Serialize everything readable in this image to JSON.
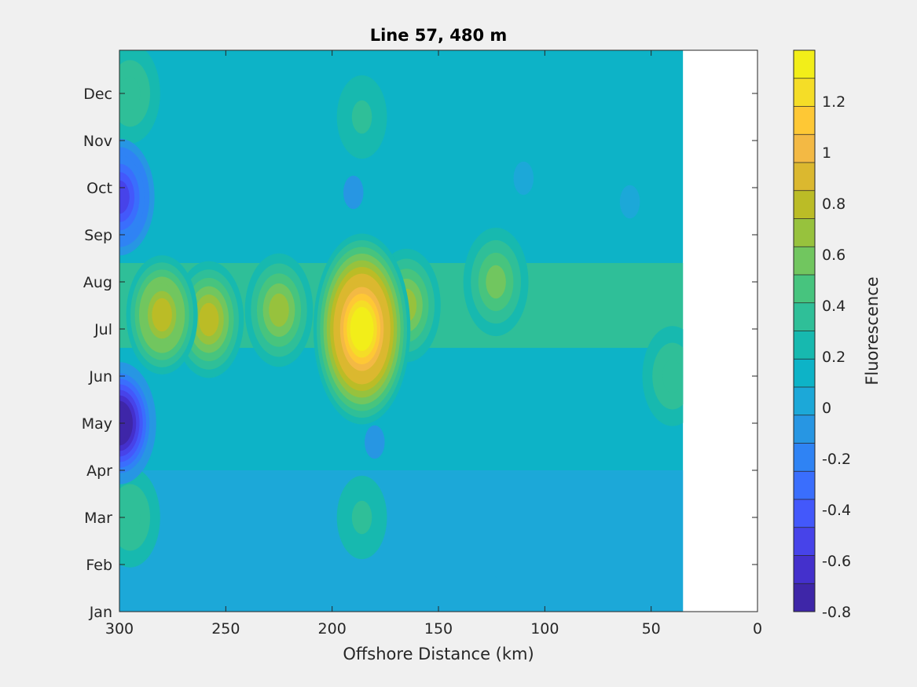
{
  "chart_data": {
    "type": "heatmap",
    "title": "Line 57, 480 m",
    "xlabel": "Offshore Distance (km)",
    "ylabel": "",
    "x_reversed": true,
    "xlim": [
      0,
      300
    ],
    "x_ticks": [
      300,
      250,
      200,
      150,
      100,
      50,
      0
    ],
    "y_ticks": [
      "Jan",
      "Feb",
      "Mar",
      "Apr",
      "May",
      "Jun",
      "Jul",
      "Aug",
      "Sep",
      "Oct",
      "Nov",
      "Dec"
    ],
    "data_extent_km": [
      35,
      300
    ],
    "colorbar": {
      "label": "Fluorescence",
      "range": [
        -0.8,
        1.4
      ],
      "ticks": [
        1.2,
        1,
        0.8,
        0.6,
        0.4,
        0.2,
        0,
        -0.2,
        -0.4,
        -0.6,
        -0.8
      ],
      "levels": [
        "#3e26a8",
        "#4430cc",
        "#4743e9",
        "#4358fb",
        "#3a6efd",
        "#2f83f4",
        "#2796e3",
        "#1ca8d8",
        "#0db3c7",
        "#17b9af",
        "#2fbf98",
        "#47c47e",
        "#71c65f",
        "#97c23d",
        "#bbbc26",
        "#dbb82f",
        "#f3b944",
        "#fec835",
        "#f5dd27",
        "#f2ee19"
      ],
      "grid": false
    },
    "features": [
      {
        "km": 186,
        "month": 6.0,
        "value": 1.35
      },
      {
        "km": 280,
        "month": 6.3,
        "value": 0.8
      },
      {
        "km": 258,
        "month": 6.2,
        "value": 0.75
      },
      {
        "km": 225,
        "month": 6.4,
        "value": 0.7
      },
      {
        "km": 165,
        "month": 6.5,
        "value": 0.65
      },
      {
        "km": 123,
        "month": 7.0,
        "value": 0.6
      },
      {
        "km": 300,
        "month": 4.0,
        "value": -0.8
      },
      {
        "km": 300,
        "month": 8.8,
        "value": -0.55
      },
      {
        "km": 295,
        "month": 2.0,
        "value": 0.4
      },
      {
        "km": 295,
        "month": 11.0,
        "value": 0.4
      },
      {
        "km": 186,
        "month": 10.5,
        "value": 0.35
      },
      {
        "km": 186,
        "month": 2.0,
        "value": 0.35
      },
      {
        "km": 40,
        "month": 5.0,
        "value": 0.4
      },
      {
        "km": 110,
        "month": 9.2,
        "value": 0.0
      },
      {
        "km": 190,
        "month": 8.9,
        "value": -0.05
      },
      {
        "km": 180,
        "month": 3.6,
        "value": -0.05
      },
      {
        "km": 60,
        "month": 8.7,
        "value": 0.0
      },
      {
        "km": 120,
        "month": 1.0,
        "value": 0.05
      }
    ]
  }
}
